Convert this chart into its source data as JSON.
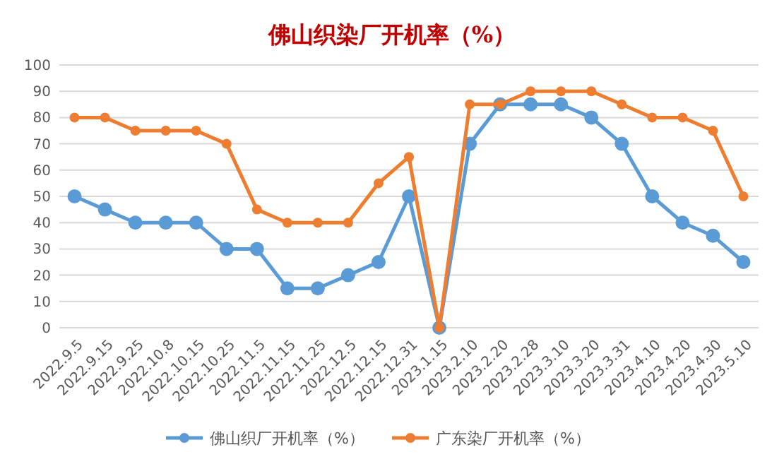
{
  "chart_data": {
    "type": "line",
    "title": "佛山织染厂开机率（%）",
    "categories": [
      "2022.9.5",
      "2022.9.15",
      "2022.9.25",
      "2022.10.8",
      "2022.10.15",
      "2022.10.25",
      "2022.11.5",
      "2022.11.15",
      "2022.11.25",
      "2022.12.5",
      "2022.12.15",
      "2022.12.31",
      "2023.1.15",
      "2023.2.10",
      "2023.2.20",
      "2023.2.28",
      "2023.3.10",
      "2023.3.20",
      "2023.3.31",
      "2023.4.10",
      "2023.4.20",
      "2023.4.30",
      "2023.5.10"
    ],
    "series": [
      {
        "name": "佛山织厂开机率（%）",
        "color": "#5b9bd5",
        "values": [
          50,
          45,
          40,
          40,
          40,
          30,
          30,
          15,
          15,
          20,
          25,
          50,
          0,
          70,
          85,
          85,
          85,
          80,
          70,
          50,
          40,
          35,
          25
        ]
      },
      {
        "name": "广东染厂开机率（%）",
        "color": "#ed7d31",
        "values": [
          80,
          80,
          75,
          75,
          75,
          70,
          45,
          40,
          40,
          40,
          55,
          65,
          0,
          85,
          85,
          90,
          90,
          90,
          85,
          80,
          80,
          75,
          50
        ]
      }
    ],
    "ylim": [
      0,
      100
    ],
    "yticks": [
      0,
      10,
      20,
      30,
      40,
      50,
      60,
      70,
      80,
      90,
      100
    ],
    "grid": "y",
    "legend": "bottom",
    "marker": "circle",
    "line_style": "solid"
  }
}
